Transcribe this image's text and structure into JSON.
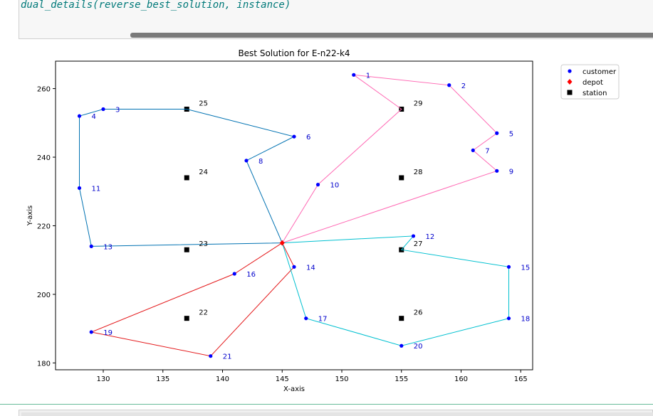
{
  "code": {
    "line": "dual_details(reverse_best_solution, instance)"
  },
  "chart_data": {
    "type": "scatter",
    "title": "Best Solution for E-n22-k4",
    "xlabel": "X-axis",
    "ylabel": "Y-axis",
    "xlim": [
      126,
      166
    ],
    "ylim": [
      178,
      268
    ],
    "xticks": [
      130,
      135,
      140,
      145,
      150,
      155,
      160,
      165
    ],
    "yticks": [
      180,
      200,
      220,
      240,
      260
    ],
    "grid": false,
    "legend_position": "upper-right-outside",
    "legend": [
      {
        "label": "customer",
        "marker": "circle",
        "color": "#0000ff"
      },
      {
        "label": "depot",
        "marker": "diamond",
        "color": "#ff0000"
      },
      {
        "label": "station",
        "marker": "square",
        "color": "#000000"
      }
    ],
    "depot": {
      "x": 145,
      "y": 215
    },
    "customers": [
      {
        "id": "1",
        "x": 151,
        "y": 264
      },
      {
        "id": "2",
        "x": 159,
        "y": 261
      },
      {
        "id": "3",
        "x": 130,
        "y": 254
      },
      {
        "id": "4",
        "x": 128,
        "y": 252
      },
      {
        "id": "5",
        "x": 163,
        "y": 247
      },
      {
        "id": "6",
        "x": 146,
        "y": 246
      },
      {
        "id": "7",
        "x": 161,
        "y": 242
      },
      {
        "id": "8",
        "x": 142,
        "y": 239
      },
      {
        "id": "9",
        "x": 163,
        "y": 236
      },
      {
        "id": "10",
        "x": 148,
        "y": 232
      },
      {
        "id": "11",
        "x": 128,
        "y": 231
      },
      {
        "id": "12",
        "x": 156,
        "y": 217
      },
      {
        "id": "13",
        "x": 129,
        "y": 214
      },
      {
        "id": "14",
        "x": 146,
        "y": 208
      },
      {
        "id": "15",
        "x": 164,
        "y": 208
      },
      {
        "id": "16",
        "x": 141,
        "y": 206
      },
      {
        "id": "17",
        "x": 147,
        "y": 193
      },
      {
        "id": "18",
        "x": 164,
        "y": 193
      },
      {
        "id": "19",
        "x": 129,
        "y": 189
      },
      {
        "id": "20",
        "x": 155,
        "y": 185
      },
      {
        "id": "21",
        "x": 139,
        "y": 182
      }
    ],
    "stations": [
      {
        "id": "22",
        "x": 137,
        "y": 193
      },
      {
        "id": "23",
        "x": 137,
        "y": 213
      },
      {
        "id": "24",
        "x": 137,
        "y": 234
      },
      {
        "id": "25",
        "x": 137,
        "y": 254
      },
      {
        "id": "26",
        "x": 155,
        "y": 193
      },
      {
        "id": "27",
        "x": 155,
        "y": 213
      },
      {
        "id": "28",
        "x": 155,
        "y": 234
      },
      {
        "id": "29",
        "x": 155,
        "y": 254
      }
    ],
    "routes": [
      {
        "color": "#ff69b4",
        "stops": [
          "depot",
          "9",
          "7",
          "5",
          "2",
          "1",
          "29",
          "10",
          "depot"
        ]
      },
      {
        "color": "#0072b2",
        "stops": [
          "depot",
          "8",
          "6",
          "25",
          "3",
          "4",
          "11",
          "13",
          "depot"
        ]
      },
      {
        "color": "#e41a1c",
        "stops": [
          "depot",
          "16",
          "19",
          "21",
          "14",
          "depot"
        ]
      },
      {
        "color": "#00c0d0",
        "stops": [
          "depot",
          "17",
          "20",
          "18",
          "15",
          "27",
          "12",
          "depot"
        ]
      }
    ],
    "label_colors": {
      "customer": "#0000cc",
      "station": "#000000"
    }
  }
}
